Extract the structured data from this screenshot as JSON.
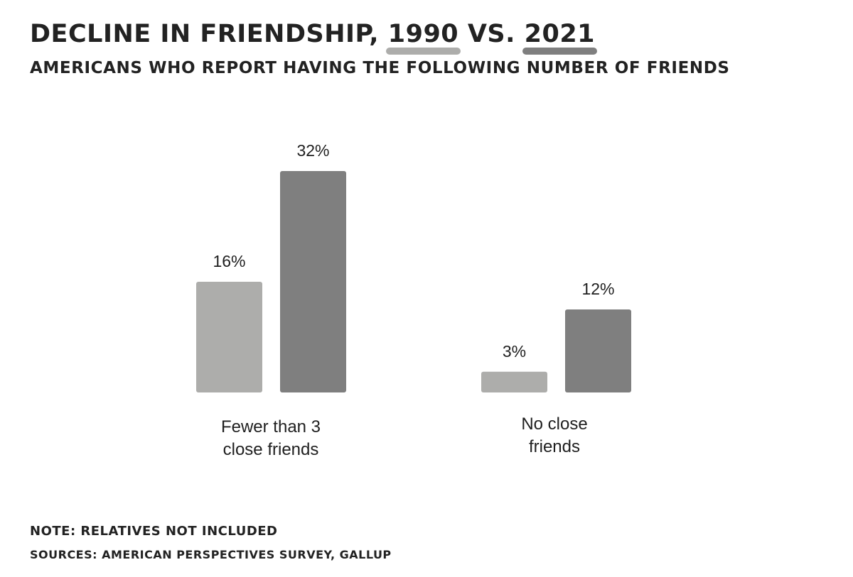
{
  "header": {
    "title_prefix": "DECLINE IN FRIENDSHIP,",
    "year_1990": "1990",
    "vs": "VS.",
    "year_2021": "2021",
    "subtitle": "AMERICANS WHO REPORT HAVING THE FOLLOWING NUMBER OF FRIENDS"
  },
  "colors": {
    "series_1990": "#adadab",
    "series_2021": "#7f7f7f",
    "text": "#1f1f1f"
  },
  "chart_data": {
    "type": "bar",
    "title": "DECLINE IN FRIENDSHIP, 1990 VS. 2021",
    "subtitle": "AMERICANS WHO REPORT HAVING THE FOLLOWING NUMBER OF FRIENDS",
    "categories": [
      "Fewer than 3 close friends",
      "No close friends"
    ],
    "category_lines": [
      [
        "Fewer than 3",
        "close friends"
      ],
      [
        "No close",
        "friends"
      ]
    ],
    "series": [
      {
        "name": "1990",
        "values": [
          16,
          3
        ],
        "labels": [
          "16%",
          "3%"
        ]
      },
      {
        "name": "2021",
        "values": [
          32,
          12
        ],
        "labels": [
          "32%",
          "12%"
        ]
      }
    ],
    "unit": "%",
    "ylim": [
      0,
      32
    ],
    "grid": false,
    "y_axis_visible": false
  },
  "footer": {
    "note": "NOTE: RELATIVES NOT INCLUDED",
    "sources": "SOURCES: AMERICAN PERSPECTIVES SURVEY, GALLUP"
  }
}
